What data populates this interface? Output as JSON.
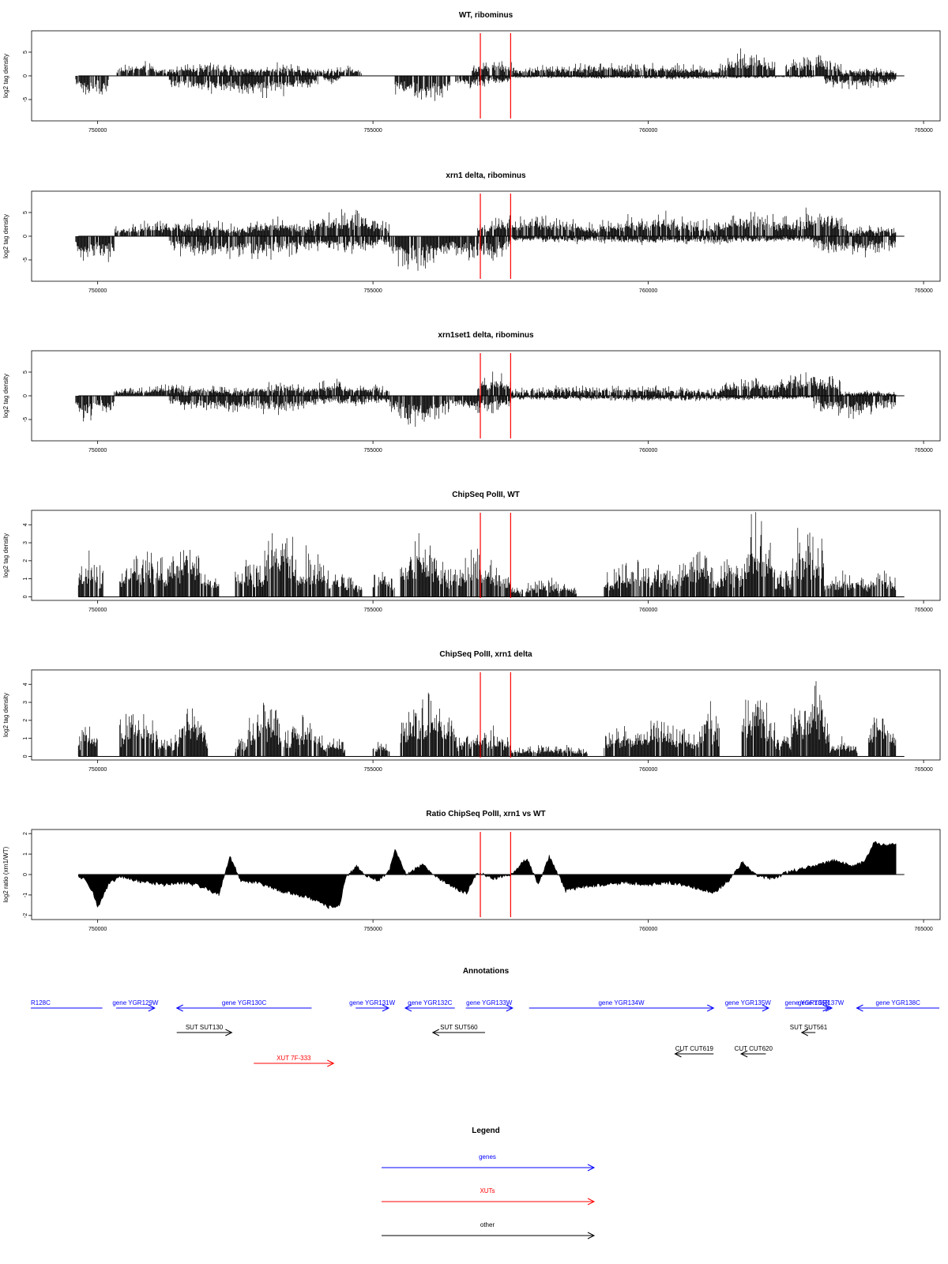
{
  "colors": {
    "gene": "#0000ff",
    "xut": "#ff0000",
    "other": "#000000",
    "marker": "#ff0000",
    "data": "#000000"
  },
  "chart_data": [
    {
      "id": "wt",
      "type": "bar",
      "title": "WT, ribominus",
      "ylabel": "log2 tag density",
      "xlim": [
        748800,
        765300
      ],
      "ylim": [
        -9.5,
        9.5
      ],
      "yticks": [
        -5,
        0,
        5
      ],
      "ytick_labels": [
        "-5",
        "0",
        "5"
      ],
      "xticks": [
        750000,
        755000,
        760000,
        765000
      ],
      "xtick_labels": [
        "750000",
        "755000",
        "760000",
        "765000"
      ],
      "markers": [
        756950,
        757500
      ],
      "pos_segments": [
        [
          750350,
          751200,
          2.5
        ],
        [
          751200,
          752700,
          2.5
        ],
        [
          752700,
          754100,
          2.2
        ],
        [
          754100,
          754800,
          2.0
        ],
        [
          756800,
          757600,
          3.2
        ],
        [
          757600,
          761300,
          2.5
        ],
        [
          761300,
          762300,
          4.5
        ],
        [
          762500,
          763500,
          4.0
        ],
        [
          763500,
          764500,
          1.5
        ]
      ],
      "neg_segments": [
        [
          749600,
          750000,
          -4.5
        ],
        [
          750000,
          750200,
          -4.0
        ],
        [
          751300,
          754000,
          -3.8
        ],
        [
          754100,
          754400,
          -1.5
        ],
        [
          755400,
          756400,
          -5.5
        ],
        [
          756500,
          757100,
          -2.5
        ],
        [
          757100,
          757500,
          -1.8
        ],
        [
          757500,
          763000,
          -0.6
        ],
        [
          763200,
          764500,
          -2.5
        ]
      ]
    },
    {
      "id": "xrn1",
      "type": "bar",
      "title": "xrn1 delta, ribominus",
      "ylabel": "log2 tag density",
      "xlim": [
        748800,
        765300
      ],
      "ylim": [
        -9.5,
        9.5
      ],
      "yticks": [
        -5,
        0,
        5
      ],
      "ytick_labels": [
        "-5",
        "0",
        "5"
      ],
      "xticks": [
        750000,
        755000,
        760000,
        765000
      ],
      "xtick_labels": [
        "750000",
        "755000",
        "760000",
        "765000"
      ],
      "markers": [
        756950,
        757500
      ],
      "pos_segments": [
        [
          750300,
          752700,
          3.0
        ],
        [
          752700,
          753800,
          3.5
        ],
        [
          753800,
          755300,
          4.5
        ],
        [
          756900,
          759000,
          4.0
        ],
        [
          759000,
          761300,
          4.0
        ],
        [
          761300,
          762600,
          5.0
        ],
        [
          762600,
          763600,
          5.0
        ],
        [
          763600,
          764500,
          2.0
        ]
      ],
      "neg_segments": [
        [
          749600,
          750000,
          -5.0
        ],
        [
          750000,
          750300,
          -5.0
        ],
        [
          751300,
          754000,
          -4.5
        ],
        [
          754000,
          755300,
          -3.0
        ],
        [
          755300,
          756400,
          -6.5
        ],
        [
          756400,
          757500,
          -5.0
        ],
        [
          757500,
          763000,
          -1.5
        ],
        [
          763000,
          764500,
          -3.5
        ]
      ]
    },
    {
      "id": "xrn1set1",
      "type": "bar",
      "title": "xrn1set1 delta, ribominus",
      "ylabel": "log2 tag density",
      "xlim": [
        748800,
        765300
      ],
      "ylim": [
        -9.5,
        9.5
      ],
      "yticks": [
        -5,
        0,
        5
      ],
      "ytick_labels": [
        "-5",
        "0",
        "5"
      ],
      "xticks": [
        750000,
        755000,
        760000,
        765000
      ],
      "xtick_labels": [
        "750000",
        "755000",
        "760000",
        "765000"
      ],
      "markers": [
        756950,
        757500
      ],
      "pos_segments": [
        [
          750300,
          752700,
          2.0
        ],
        [
          752700,
          753900,
          2.5
        ],
        [
          753900,
          754600,
          3.5
        ],
        [
          754600,
          755300,
          2.5
        ],
        [
          756900,
          757500,
          4.5
        ],
        [
          757500,
          761300,
          2.0
        ],
        [
          761300,
          762300,
          3.5
        ],
        [
          762300,
          763500,
          4.5
        ],
        [
          763500,
          764500,
          1.0
        ]
      ],
      "neg_segments": [
        [
          749600,
          750000,
          -5.0
        ],
        [
          750000,
          750300,
          -4.0
        ],
        [
          751300,
          754000,
          -3.5
        ],
        [
          754000,
          755300,
          -2.0
        ],
        [
          755300,
          756400,
          -5.5
        ],
        [
          756400,
          757500,
          -3.5
        ],
        [
          757500,
          763000,
          -1.0
        ],
        [
          763000,
          764500,
          -4.0
        ]
      ]
    },
    {
      "id": "chip_wt",
      "type": "bar",
      "title": "ChipSeq PolII, WT",
      "ylabel": "log2 tag density",
      "xlim": [
        748800,
        765300
      ],
      "ylim": [
        -0.2,
        4.8
      ],
      "yticks": [
        0,
        1,
        2,
        3,
        4
      ],
      "ytick_labels": [
        "0",
        "1",
        "2",
        "3",
        "4"
      ],
      "xticks": [
        750000,
        755000,
        760000,
        765000
      ],
      "xtick_labels": [
        "750000",
        "755000",
        "760000",
        "765000"
      ],
      "markers": [
        756950,
        757500
      ],
      "pos_segments": [
        [
          749650,
          750100,
          2.0
        ],
        [
          750400,
          751300,
          2.3
        ],
        [
          751300,
          751900,
          3.1
        ],
        [
          751900,
          752200,
          1.5
        ],
        [
          752500,
          753000,
          2.0
        ],
        [
          753000,
          753600,
          3.8
        ],
        [
          753600,
          754200,
          2.3
        ],
        [
          754200,
          754800,
          1.2
        ],
        [
          755000,
          755400,
          1.5
        ],
        [
          755500,
          756300,
          3.0
        ],
        [
          756300,
          757500,
          2.0
        ],
        [
          757500,
          758700,
          0.8
        ],
        [
          759200,
          760500,
          1.8
        ],
        [
          760500,
          761200,
          2.6
        ],
        [
          761200,
          761700,
          2.0
        ],
        [
          761700,
          762300,
          3.8
        ],
        [
          762300,
          762600,
          1.5
        ],
        [
          762600,
          763200,
          3.6
        ],
        [
          763200,
          764000,
          1.2
        ],
        [
          764000,
          764500,
          1.5
        ]
      ]
    },
    {
      "id": "chip_xrn1",
      "type": "bar",
      "title": "ChipSeq PolII, xrn1 delta",
      "ylabel": "log2 tag density",
      "xlim": [
        748800,
        765300
      ],
      "ylim": [
        -0.2,
        4.8
      ],
      "yticks": [
        0,
        1,
        2,
        3,
        4
      ],
      "ytick_labels": [
        "0",
        "1",
        "2",
        "3",
        "4"
      ],
      "xticks": [
        750000,
        755000,
        760000,
        765000
      ],
      "xtick_labels": [
        "750000",
        "755000",
        "760000",
        "765000"
      ],
      "markers": [
        756950,
        757500
      ],
      "pos_segments": [
        [
          749650,
          750000,
          1.6
        ],
        [
          750400,
          751100,
          2.6
        ],
        [
          751100,
          751400,
          1.2
        ],
        [
          751400,
          752000,
          2.6
        ],
        [
          752500,
          752700,
          1.2
        ],
        [
          752700,
          753400,
          2.8
        ],
        [
          753400,
          754100,
          2.0
        ],
        [
          754100,
          754500,
          1.0
        ],
        [
          755000,
          755300,
          0.8
        ],
        [
          755500,
          756500,
          3.0
        ],
        [
          756500,
          757500,
          1.5
        ],
        [
          757500,
          758900,
          0.6
        ],
        [
          759200,
          760900,
          1.8
        ],
        [
          760900,
          761300,
          2.5
        ],
        [
          761700,
          762300,
          3.5
        ],
        [
          762300,
          762600,
          1.2
        ],
        [
          762600,
          763300,
          3.6
        ],
        [
          763300,
          763800,
          1.0
        ],
        [
          764000,
          764500,
          2.5
        ]
      ]
    },
    {
      "id": "ratio",
      "type": "area",
      "title": "Ratio ChipSeq PolII, xrn1 vs WT",
      "ylabel": "log2 ratio (xrn1/WT)",
      "xlim": [
        748800,
        765300
      ],
      "ylim": [
        -2.2,
        2.2
      ],
      "yticks": [
        -2,
        -1,
        0,
        1,
        2
      ],
      "ytick_labels": [
        "-2",
        "-1",
        "0",
        "1",
        "2"
      ],
      "xticks": [
        750000,
        755000,
        760000,
        765000
      ],
      "xtick_labels": [
        "750000",
        "755000",
        "760000",
        "765000"
      ],
      "markers": [
        756950,
        757500
      ],
      "x": [
        749650,
        749800,
        749900,
        750000,
        750200,
        750400,
        750700,
        751200,
        751600,
        751900,
        752200,
        752400,
        752600,
        752900,
        753300,
        753800,
        754200,
        754400,
        754500,
        754700,
        754900,
        755100,
        755300,
        755400,
        755600,
        755900,
        756200,
        756500,
        756700,
        756900,
        757200,
        757500,
        757800,
        758000,
        758200,
        758500,
        758800,
        759200,
        759600,
        760000,
        760400,
        760800,
        761200,
        761500,
        761700,
        762000,
        762300,
        762500,
        762800,
        763100,
        763400,
        763700,
        763900,
        764000,
        764100,
        764300,
        764500
      ],
      "values": [
        -0.1,
        -0.3,
        -0.8,
        -1.6,
        -0.5,
        -0.1,
        -0.3,
        -0.5,
        -0.4,
        -0.6,
        -1.0,
        0.9,
        -0.3,
        -0.4,
        -0.8,
        -1.1,
        -1.6,
        -1.5,
        -0.2,
        0.4,
        -0.1,
        -0.3,
        0.2,
        1.2,
        0.0,
        0.5,
        -0.2,
        -0.7,
        -0.9,
        0.1,
        -0.2,
        0.0,
        0.8,
        -0.5,
        0.9,
        -0.8,
        -0.6,
        -0.5,
        -0.4,
        -0.5,
        -0.4,
        -0.6,
        -0.9,
        -0.2,
        0.6,
        -0.1,
        -0.2,
        0.1,
        0.3,
        0.5,
        0.7,
        0.4,
        0.6,
        1.0,
        1.6,
        1.4,
        1.5
      ]
    }
  ],
  "annotations": {
    "title": "Annotations",
    "features": [
      {
        "label": "R128C",
        "kind": "gene",
        "start": 748800,
        "end": 750100,
        "dir": "none",
        "row": 0
      },
      {
        "label": "gene YGR129W",
        "kind": "gene",
        "start": 750350,
        "end": 751050,
        "dir": "right",
        "row": 0
      },
      {
        "label": "gene YGR130C",
        "kind": "gene",
        "start": 751450,
        "end": 753900,
        "dir": "left",
        "row": 0
      },
      {
        "label": "gene YGR131W",
        "kind": "gene",
        "start": 754700,
        "end": 755300,
        "dir": "right",
        "row": 0
      },
      {
        "label": "gene YGR132C",
        "kind": "gene",
        "start": 755600,
        "end": 756500,
        "dir": "left",
        "row": 0
      },
      {
        "label": "gene YGR133W",
        "kind": "gene",
        "start": 756700,
        "end": 757550,
        "dir": "right",
        "row": 0
      },
      {
        "label": "gene YGR134W",
        "kind": "gene",
        "start": 757850,
        "end": 761200,
        "dir": "right",
        "row": 0
      },
      {
        "label": "gene YGR135W",
        "kind": "gene",
        "start": 761450,
        "end": 762200,
        "dir": "right",
        "row": 0
      },
      {
        "label": "gene YGR136R",
        "kind": "gene",
        "start": 762500,
        "end": 763300,
        "dir": "right",
        "row": 0
      },
      {
        "label": "gene YGR137W",
        "kind": "gene",
        "start": 762950,
        "end": 763350,
        "dir": "right",
        "row": 0
      },
      {
        "label": "gene YGR138C",
        "kind": "gene",
        "start": 763800,
        "end": 765300,
        "dir": "left",
        "row": 0
      },
      {
        "label": "SUT SUT130",
        "kind": "other",
        "start": 751450,
        "end": 752450,
        "dir": "right",
        "row": 1
      },
      {
        "label": "SUT SUT560",
        "kind": "other",
        "start": 756100,
        "end": 757050,
        "dir": "left",
        "row": 1
      },
      {
        "label": "SUT SUT561",
        "kind": "other",
        "start": 762800,
        "end": 763050,
        "dir": "left",
        "row": 1
      },
      {
        "label": "CUT CUT619",
        "kind": "other",
        "start": 760500,
        "end": 761200,
        "dir": "left",
        "row": 2
      },
      {
        "label": "CUT CUT620",
        "kind": "other",
        "start": 761700,
        "end": 762150,
        "dir": "left",
        "row": 2
      },
      {
        "label": "XUT 7F-333",
        "kind": "xut",
        "start": 752850,
        "end": 754300,
        "dir": "right",
        "row": 3
      }
    ]
  },
  "legend": {
    "title": "Legend",
    "items": [
      {
        "label": "genes",
        "kind": "gene"
      },
      {
        "label": "XUTs",
        "kind": "xut"
      },
      {
        "label": "other",
        "kind": "other"
      }
    ]
  }
}
